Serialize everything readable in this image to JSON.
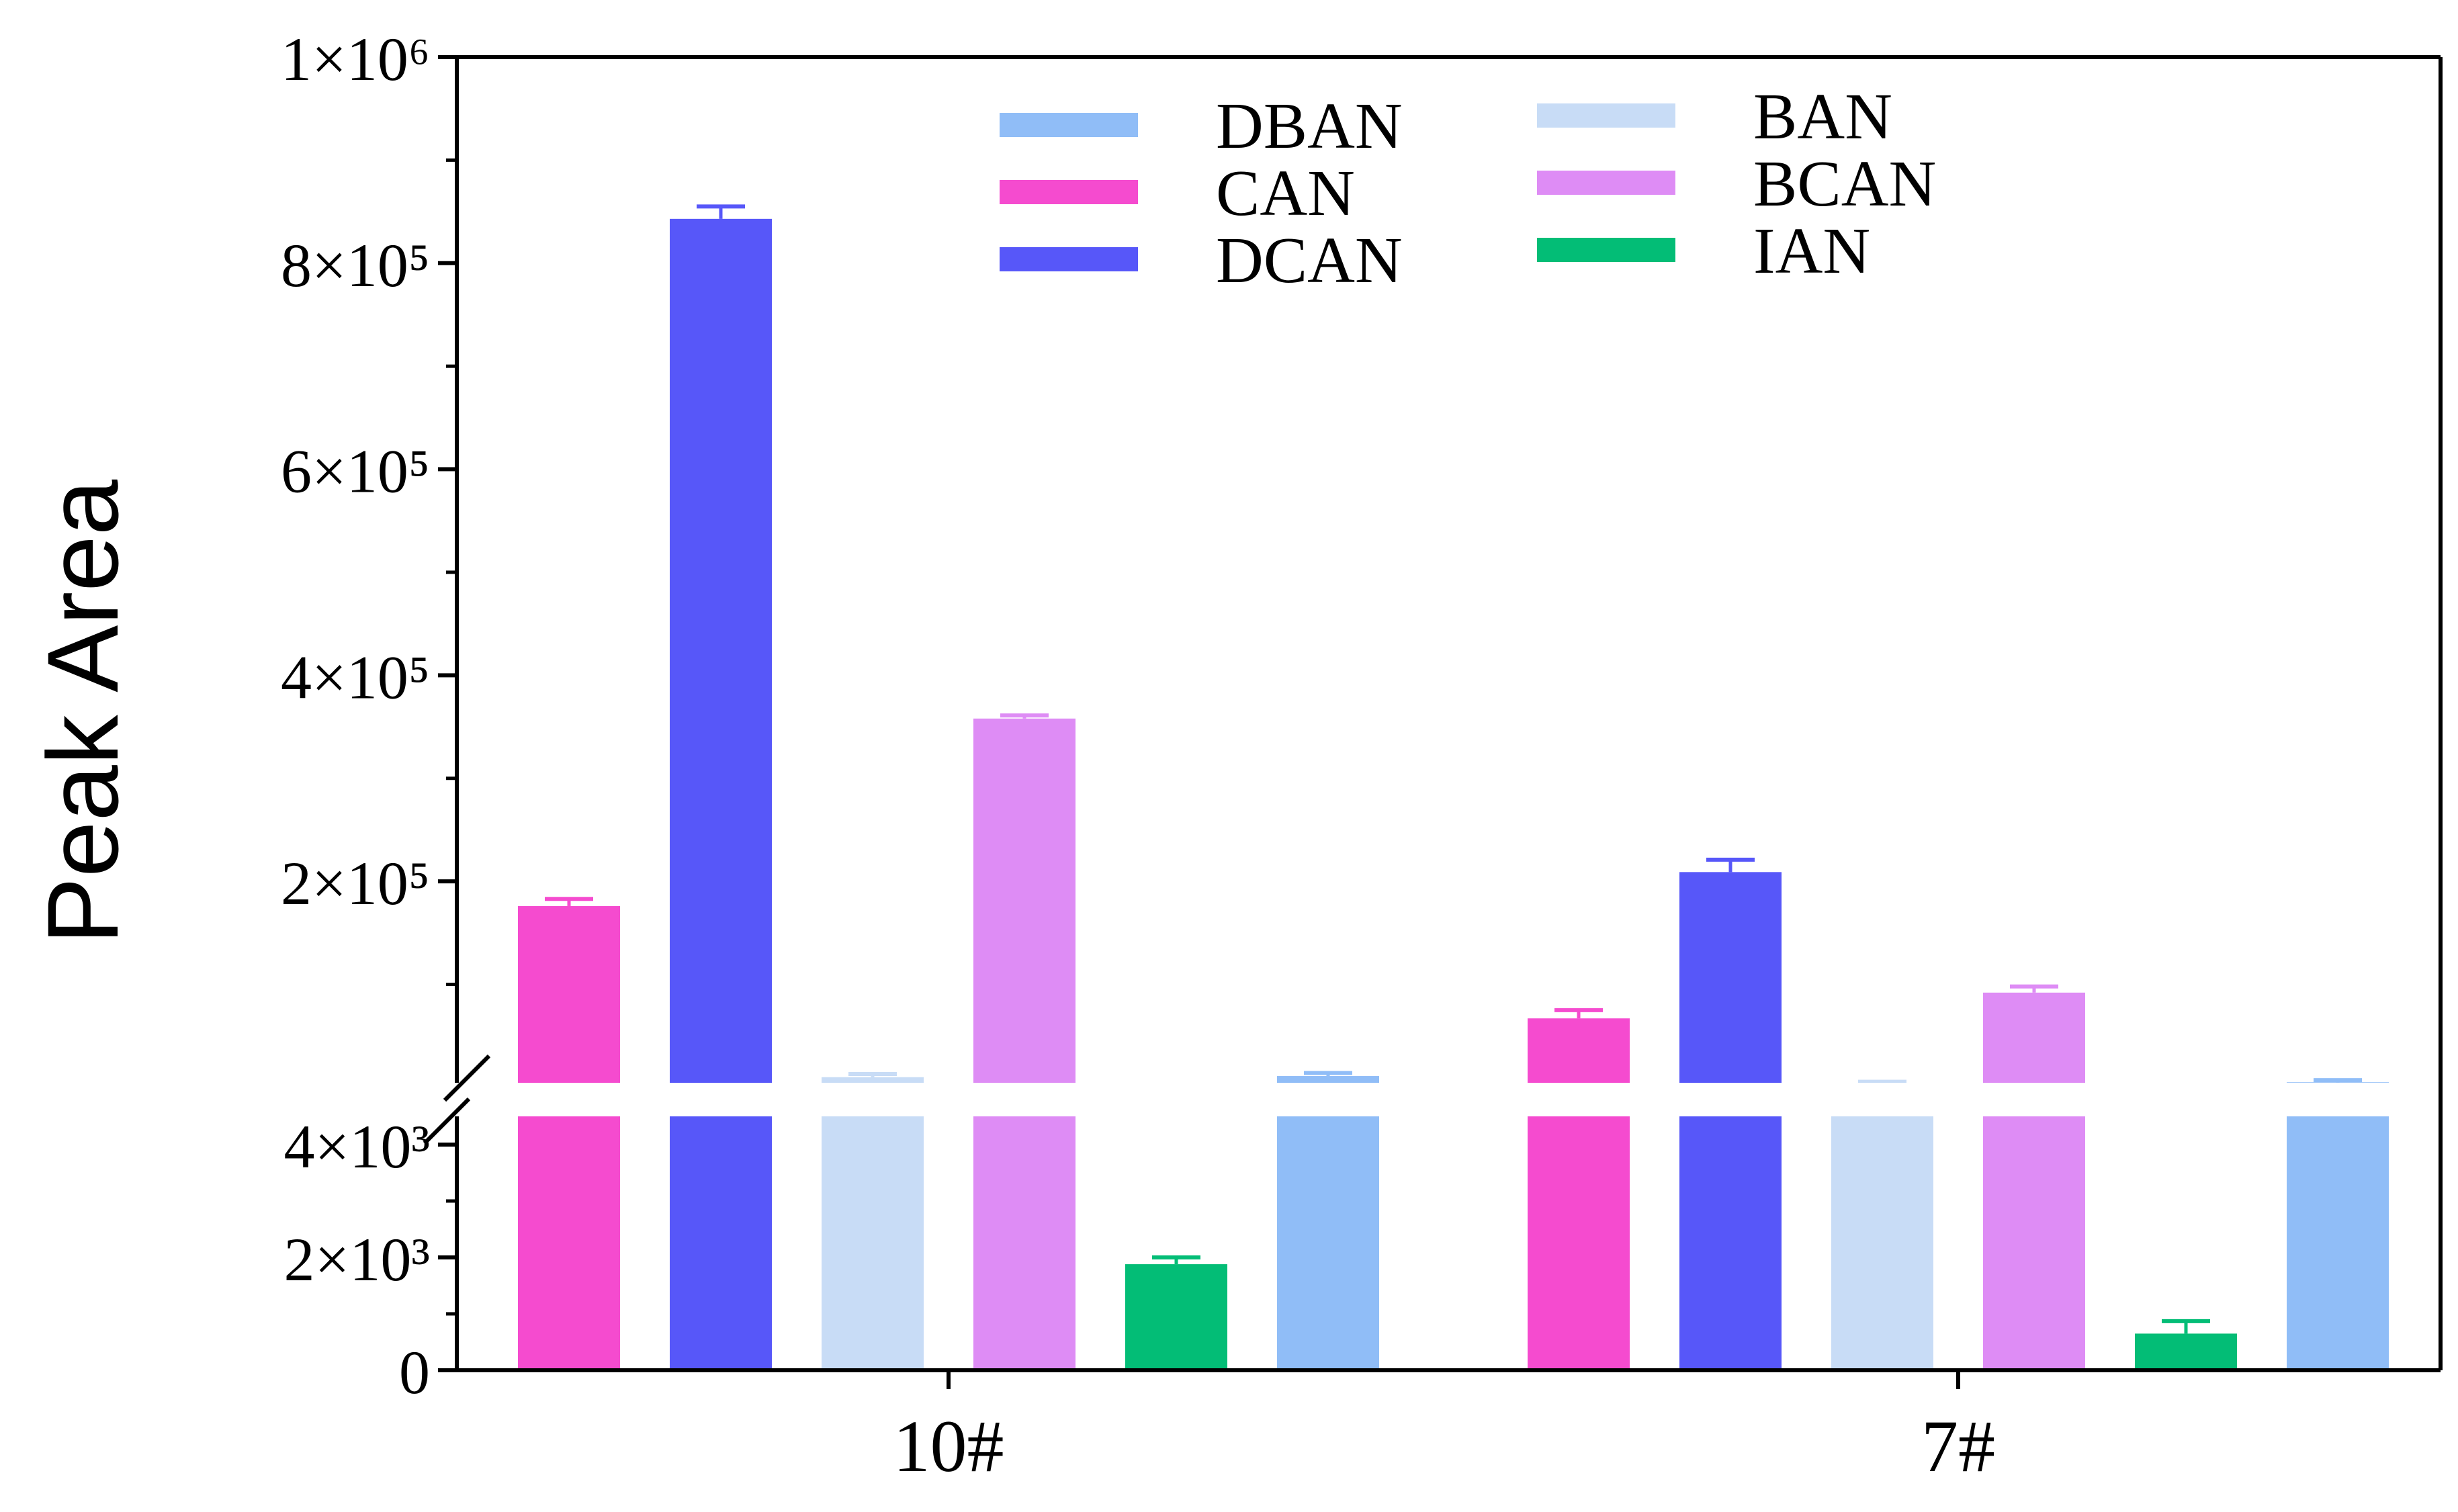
{
  "chart_data": {
    "type": "bar",
    "ylabel": "Peak Area",
    "categories": [
      "10#",
      "7#"
    ],
    "y_axis": {
      "broken": true,
      "lower_segment": {
        "range": [
          0,
          4500
        ],
        "ticks": [
          0,
          2000,
          4000
        ],
        "tick_labels": [
          "0",
          "2×10³",
          "4×10³"
        ]
      },
      "upper_segment": {
        "range": [
          4500,
          1000000
        ],
        "ticks": [
          200000,
          400000,
          600000,
          800000,
          1000000
        ],
        "tick_labels": [
          "2×10⁵",
          "4×10⁵",
          "6×10⁵",
          "8×10⁵",
          "1×10⁶"
        ]
      }
    },
    "legend_placement": "top",
    "series": [
      {
        "name": "CAN",
        "color": "#f54bcf",
        "values": [
          176000,
          67000
        ],
        "errors": [
          7000,
          8000
        ]
      },
      {
        "name": "DCAN",
        "color": "#5757f9",
        "values": [
          843000,
          209000
        ],
        "errors": [
          12000,
          12000
        ]
      },
      {
        "name": "BAN",
        "color": "#c8dcf6",
        "values": [
          10000,
          4500
        ],
        "errors": [
          3000,
          1000
        ]
      },
      {
        "name": "BCAN",
        "color": "#de8cf5",
        "values": [
          358000,
          92000
        ],
        "errors": [
          3000,
          6000
        ]
      },
      {
        "name": "IAN",
        "color": "#03bd76",
        "values": [
          1880,
          650
        ],
        "errors": [
          120,
          220
        ]
      },
      {
        "name": "DBAN",
        "color": "#90bdf7",
        "values": [
          11000,
          5000
        ],
        "errors": [
          3000,
          2000
        ]
      }
    ],
    "legend_order": [
      "DBAN",
      "BAN",
      "CAN",
      "BCAN",
      "DCAN",
      "IAN"
    ]
  }
}
